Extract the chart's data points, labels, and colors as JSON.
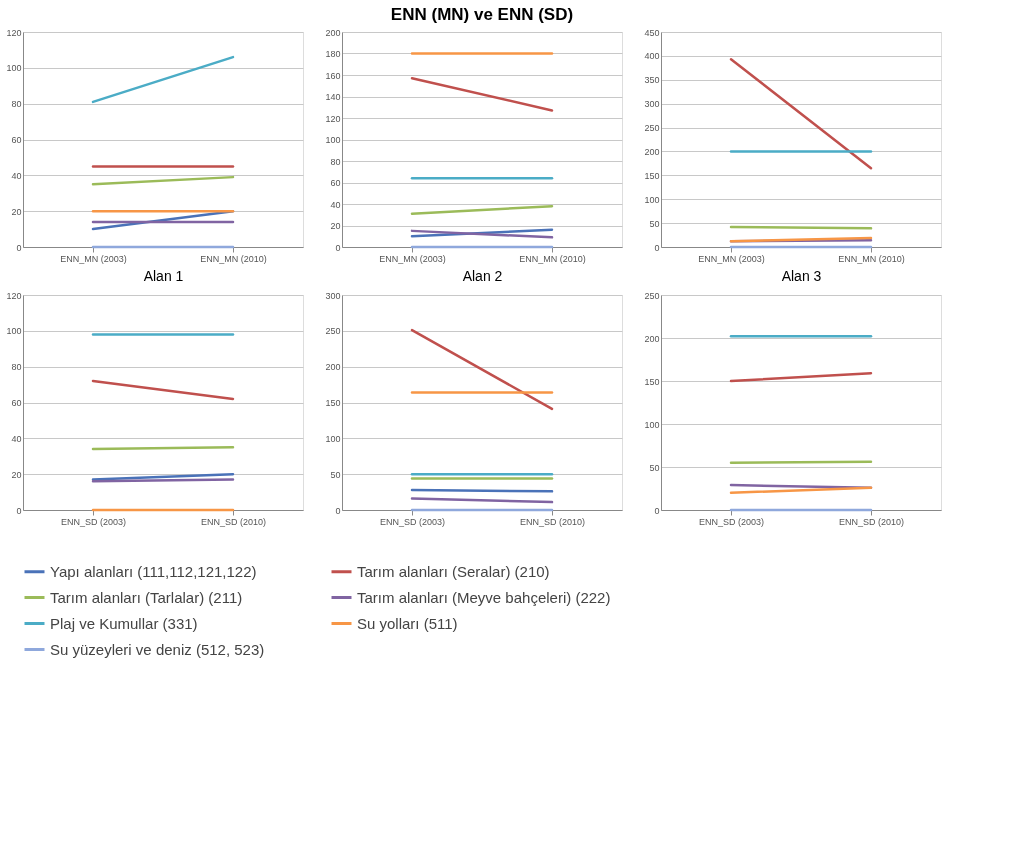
{
  "chart_data": [
    {
      "type": "line",
      "xlabel": "Alan 1",
      "categories": [
        "ENN_MN (2003)",
        "ENN_MN (2010)"
      ],
      "ylim": [
        0,
        120
      ],
      "yticks": [
        0,
        20,
        40,
        60,
        80,
        100,
        120
      ],
      "grid": "y",
      "series": [
        {
          "color": "#4a72b8",
          "values": [
            10,
            20
          ]
        },
        {
          "color": "#c0504d",
          "values": [
            45,
            45
          ]
        },
        {
          "color": "#9bbb59",
          "values": [
            35,
            39
          ]
        },
        {
          "color": "#8064a2",
          "values": [
            14,
            14
          ]
        },
        {
          "color": "#4bacc6",
          "values": [
            81,
            106
          ]
        },
        {
          "color": "#f79646",
          "values": [
            20,
            20
          ]
        },
        {
          "color": "#8fa8dc",
          "values": [
            0,
            0
          ]
        }
      ]
    },
    {
      "type": "line",
      "title": "ENN (MN) ve ENN (SD)",
      "xlabel": "Alan 2",
      "categories": [
        "ENN_MN (2003)",
        "ENN_MN (2010)"
      ],
      "ylim": [
        0,
        200
      ],
      "yticks": [
        0,
        20,
        40,
        60,
        80,
        100,
        120,
        140,
        160,
        180,
        200
      ],
      "grid": "y",
      "series": [
        {
          "color": "#4a72b8",
          "values": [
            10,
            16
          ]
        },
        {
          "color": "#c0504d",
          "values": [
            157,
            127
          ]
        },
        {
          "color": "#9bbb59",
          "values": [
            31,
            38
          ]
        },
        {
          "color": "#8064a2",
          "values": [
            15,
            9
          ]
        },
        {
          "color": "#4bacc6",
          "values": [
            64,
            64
          ]
        },
        {
          "color": "#f79646",
          "values": [
            180,
            180
          ]
        },
        {
          "color": "#8fa8dc",
          "values": [
            0,
            0
          ]
        }
      ]
    },
    {
      "type": "line",
      "xlabel": "Alan 3",
      "categories": [
        "ENN_MN (2003)",
        "ENN_MN (2010)"
      ],
      "ylim": [
        0,
        450
      ],
      "yticks": [
        0,
        50,
        100,
        150,
        200,
        250,
        300,
        350,
        400,
        450
      ],
      "grid": "y",
      "series": [
        {
          "color": "#4a72b8",
          "values": [
            null,
            null
          ]
        },
        {
          "color": "#c0504d",
          "values": [
            393,
            165
          ]
        },
        {
          "color": "#9bbb59",
          "values": [
            42,
            39
          ]
        },
        {
          "color": "#8064a2",
          "values": [
            12,
            14
          ]
        },
        {
          "color": "#4bacc6",
          "values": [
            200,
            200
          ]
        },
        {
          "color": "#f79646",
          "values": [
            12,
            19
          ]
        },
        {
          "color": "#8fa8dc",
          "values": [
            0,
            0
          ]
        }
      ]
    },
    {
      "type": "line",
      "categories": [
        "ENN_SD (2003)",
        "ENN_SD (2010)"
      ],
      "ylim": [
        0,
        120
      ],
      "yticks": [
        0,
        20,
        40,
        60,
        80,
        100,
        120
      ],
      "grid": "y",
      "series": [
        {
          "color": "#4a72b8",
          "values": [
            17,
            20
          ]
        },
        {
          "color": "#c0504d",
          "values": [
            72,
            62
          ]
        },
        {
          "color": "#9bbb59",
          "values": [
            34,
            35
          ]
        },
        {
          "color": "#8064a2",
          "values": [
            16,
            17
          ]
        },
        {
          "color": "#4bacc6",
          "values": [
            98,
            98
          ]
        },
        {
          "color": "#f79646",
          "values": [
            0,
            0
          ]
        },
        {
          "color": "#8fa8dc",
          "values": [
            null,
            null
          ]
        }
      ]
    },
    {
      "type": "line",
      "categories": [
        "ENN_SD (2003)",
        "ENN_SD (2010)"
      ],
      "ylim": [
        0,
        300
      ],
      "yticks": [
        0,
        50,
        100,
        150,
        200,
        250,
        300
      ],
      "grid": "y",
      "series": [
        {
          "color": "#4a72b8",
          "values": [
            28,
            26
          ]
        },
        {
          "color": "#c0504d",
          "values": [
            251,
            141
          ]
        },
        {
          "color": "#9bbb59",
          "values": [
            44,
            44
          ]
        },
        {
          "color": "#8064a2",
          "values": [
            16,
            11
          ]
        },
        {
          "color": "#4bacc6",
          "values": [
            50,
            50
          ]
        },
        {
          "color": "#f79646",
          "values": [
            164,
            164
          ]
        },
        {
          "color": "#8fa8dc",
          "values": [
            0,
            0
          ]
        }
      ]
    },
    {
      "type": "line",
      "categories": [
        "ENN_SD (2003)",
        "ENN_SD (2010)"
      ],
      "ylim": [
        0,
        250
      ],
      "yticks": [
        0,
        50,
        100,
        150,
        200,
        250
      ],
      "grid": "y",
      "legend": "bottom",
      "series": [
        {
          "name": "Yapı alanları (111,112,121,122)",
          "color": "#4a72b8",
          "values": [
            null,
            null
          ]
        },
        {
          "name": "Tarım alanları (Seralar) (210)",
          "color": "#c0504d",
          "values": [
            150,
            159
          ]
        },
        {
          "name": "Tarım alanları (Tarlalar) (211)",
          "color": "#9bbb59",
          "values": [
            55,
            56
          ]
        },
        {
          "name": "Tarım alanları (Meyve bahçeleri) (222)",
          "color": "#8064a2",
          "values": [
            29,
            26
          ]
        },
        {
          "name": "Plaj ve Kumullar (331)",
          "color": "#4bacc6",
          "values": [
            202,
            202
          ]
        },
        {
          "name": "Su yolları (511)",
          "color": "#f79646",
          "values": [
            20,
            26
          ]
        },
        {
          "name": "Su yüzeyleri ve deniz (512, 523)",
          "color": "#8fa8dc",
          "values": [
            0,
            0
          ]
        }
      ]
    }
  ]
}
